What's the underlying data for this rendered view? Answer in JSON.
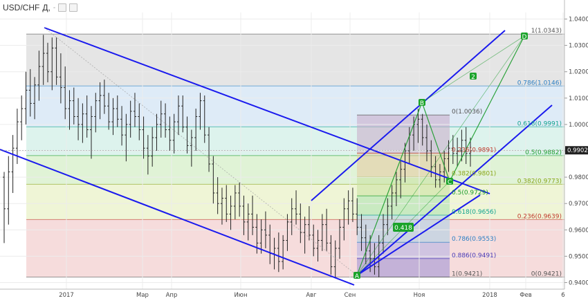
{
  "header": {
    "symbol": "USD/CHF",
    "timeframe": "Д,",
    "dropdown_glyph": "-"
  },
  "chart_data": {
    "type": "candlestick-ohlc",
    "x_ticks": [
      "2017",
      "Мар",
      "Апр",
      "Июн",
      "Авг",
      "Сен",
      "Ноя",
      "2018",
      "Фев",
      "6"
    ],
    "y_ticks": [
      "1.0400",
      "1.0300",
      "1.0200",
      "1.0100",
      "1.0000",
      "0.9900",
      "0.9800",
      "0.9700",
      "0.9600",
      "0.9500",
      "0.9400"
    ],
    "ylim": [
      0.9375,
      1.0425
    ],
    "current_price_label": "0.9902",
    "fib_right": [
      {
        "label": "1(1.0343)",
        "value": 1.0343,
        "color": "#555555"
      },
      {
        "label": "0.786(1.0146)",
        "value": 1.0146,
        "color": "#2b7fc4"
      },
      {
        "label": "0.618(0.9991)",
        "value": 0.9991,
        "color": "#11a38f"
      },
      {
        "label": "0.5(0.9882)",
        "value": 0.9882,
        "color": "#1a9b2a"
      },
      {
        "label": "0.382(0.9773)",
        "value": 0.9773,
        "color": "#8aa41b"
      },
      {
        "label": "0.236(0.9639)",
        "value": 0.9639,
        "color": "#c0392b"
      },
      {
        "label": "0(0.9421)",
        "value": 0.9421,
        "color": "#555555"
      }
    ],
    "fib_inner": [
      {
        "label": "0(1.0036)",
        "value": 1.0036,
        "color": "#555555"
      },
      {
        "label": "0.236(0.9891)",
        "value": 0.9891,
        "color": "#c0392b"
      },
      {
        "label": "0.382(0.9801)",
        "value": 0.9801,
        "color": "#8aa41b"
      },
      {
        "label": "0.5(0.9729)",
        "value": 0.9729,
        "color": "#1a9b2a"
      },
      {
        "label": "0.618(0.9656)",
        "value": 0.9656,
        "color": "#11a38f"
      },
      {
        "label": "0.786(0.9553)",
        "value": 0.9553,
        "color": "#2b7fc4"
      },
      {
        "label": "0.886(0.9491)",
        "value": 0.9491,
        "color": "#4a38b4"
      },
      {
        "label": "1(0.9421)",
        "value": 0.9421,
        "color": "#555555"
      }
    ],
    "pattern_points": [
      {
        "label": "A",
        "price": 0.9421
      },
      {
        "label": "B",
        "price": 1.0066
      },
      {
        "label": "C",
        "price": 0.9757
      },
      {
        "label": "D",
        "price": 1.0343
      }
    ],
    "marker_2": "2",
    "ratio_label": "0.418",
    "fill_colors": {
      "top_band": "#e0e0e0",
      "b786": "#d8e8f6",
      "b618": "#d7f1ea",
      "b500": "#daf1cf",
      "b382": "#ecf3cf",
      "b236": "#f4d6d6",
      "channel": "#1a1aee",
      "pattern": "#1a9b2a"
    },
    "candles": [
      [
        0.98,
        0.982,
        0.955,
        0.968
      ],
      [
        0.968,
        0.988,
        0.962,
        0.982
      ],
      [
        0.982,
        0.996,
        0.974,
        0.991
      ],
      [
        0.991,
        1.006,
        0.985,
        1.001
      ],
      [
        1.001,
        1.011,
        0.994,
        1.006
      ],
      [
        1.006,
        1.02,
        1.0,
        1.013
      ],
      [
        1.013,
        1.021,
        1.003,
        1.008
      ],
      [
        1.008,
        1.018,
        1.002,
        1.015
      ],
      [
        1.015,
        1.028,
        1.009,
        1.022
      ],
      [
        1.022,
        1.034,
        1.015,
        1.027
      ],
      [
        1.027,
        1.031,
        1.016,
        1.02
      ],
      [
        1.02,
        1.033,
        1.013,
        1.029
      ],
      [
        1.029,
        1.033,
        1.015,
        1.018
      ],
      [
        1.018,
        1.027,
        1.008,
        1.014
      ],
      [
        1.014,
        1.022,
        1.002,
        1.006
      ],
      [
        1.006,
        1.013,
        0.998,
        1.009
      ],
      [
        1.009,
        1.014,
        1.0,
        1.003
      ],
      [
        1.003,
        1.01,
        0.994,
        1.0
      ],
      [
        1.0,
        1.008,
        0.993,
        1.004
      ],
      [
        1.004,
        1.011,
        0.995,
        0.998
      ],
      [
        0.998,
        1.007,
        0.987,
        1.003
      ],
      [
        1.003,
        1.012,
        0.997,
        1.009
      ],
      [
        1.009,
        1.016,
        1.002,
        1.011
      ],
      [
        1.011,
        1.017,
        1.004,
        1.007
      ],
      [
        1.007,
        1.012,
        0.998,
        1.001
      ],
      [
        1.001,
        1.01,
        0.996,
        1.006
      ],
      [
        1.006,
        1.011,
        0.999,
        1.002
      ],
      [
        1.002,
        1.007,
        0.992,
        0.996
      ],
      [
        0.996,
        1.004,
        0.986,
        1.0
      ],
      [
        1.0,
        1.009,
        0.995,
        1.005
      ],
      [
        1.005,
        1.012,
        0.999,
        1.003
      ],
      [
        1.003,
        1.008,
        0.994,
        0.998
      ],
      [
        0.998,
        1.003,
        0.987,
        0.991
      ],
      [
        0.991,
        0.996,
        0.981,
        0.988
      ],
      [
        0.988,
        0.999,
        0.984,
        0.995
      ],
      [
        0.995,
        1.004,
        0.99,
        1.0
      ],
      [
        1.0,
        1.009,
        0.995,
        1.004
      ],
      [
        1.004,
        1.008,
        0.995,
        0.998
      ],
      [
        0.998,
        1.003,
        0.99,
        0.994
      ],
      [
        0.994,
        1.004,
        0.989,
        1.001
      ],
      [
        1.001,
        1.011,
        0.996,
        1.007
      ],
      [
        1.007,
        1.011,
        0.997,
        0.999
      ],
      [
        0.999,
        1.003,
        0.989,
        0.992
      ],
      [
        0.992,
        0.998,
        0.984,
        0.995
      ],
      [
        0.995,
        1.006,
        0.99,
        1.003
      ],
      [
        1.003,
        1.012,
        0.998,
        1.009
      ],
      [
        1.009,
        1.011,
        0.993,
        0.996
      ],
      [
        0.996,
        0.999,
        0.982,
        0.985
      ],
      [
        0.985,
        0.988,
        0.97,
        0.974
      ],
      [
        0.974,
        0.98,
        0.966,
        0.97
      ],
      [
        0.97,
        0.976,
        0.962,
        0.972
      ],
      [
        0.972,
        0.977,
        0.963,
        0.966
      ],
      [
        0.966,
        0.973,
        0.96,
        0.969
      ],
      [
        0.969,
        0.977,
        0.964,
        0.974
      ],
      [
        0.974,
        0.978,
        0.965,
        0.969
      ],
      [
        0.969,
        0.973,
        0.958,
        0.963
      ],
      [
        0.963,
        0.97,
        0.956,
        0.966
      ],
      [
        0.966,
        0.973,
        0.958,
        0.961
      ],
      [
        0.961,
        0.966,
        0.951,
        0.955
      ],
      [
        0.955,
        0.964,
        0.951,
        0.96
      ],
      [
        0.96,
        0.967,
        0.953,
        0.958
      ],
      [
        0.958,
        0.962,
        0.947,
        0.951
      ],
      [
        0.951,
        0.957,
        0.945,
        0.953
      ],
      [
        0.953,
        0.959,
        0.944,
        0.948
      ],
      [
        0.948,
        0.958,
        0.945,
        0.956
      ],
      [
        0.956,
        0.966,
        0.952,
        0.963
      ],
      [
        0.963,
        0.972,
        0.958,
        0.968
      ],
      [
        0.968,
        0.975,
        0.962,
        0.966
      ],
      [
        0.966,
        0.97,
        0.955,
        0.959
      ],
      [
        0.959,
        0.965,
        0.951,
        0.962
      ],
      [
        0.962,
        0.969,
        0.956,
        0.958
      ],
      [
        0.958,
        0.962,
        0.95,
        0.953
      ],
      [
        0.953,
        0.96,
        0.948,
        0.956
      ],
      [
        0.956,
        0.966,
        0.952,
        0.962
      ],
      [
        0.962,
        0.968,
        0.952,
        0.955
      ],
      [
        0.955,
        0.958,
        0.943,
        0.946
      ],
      [
        0.946,
        0.956,
        0.942,
        0.953
      ],
      [
        0.953,
        0.964,
        0.949,
        0.961
      ],
      [
        0.961,
        0.972,
        0.956,
        0.968
      ],
      [
        0.968,
        0.975,
        0.962,
        0.971
      ],
      [
        0.971,
        0.976,
        0.963,
        0.966
      ],
      [
        0.966,
        0.972,
        0.958,
        0.961
      ],
      [
        0.961,
        0.966,
        0.952,
        0.957
      ],
      [
        0.957,
        0.962,
        0.947,
        0.952
      ],
      [
        0.952,
        0.958,
        0.944,
        0.949
      ],
      [
        0.949,
        0.955,
        0.943,
        0.946
      ],
      [
        0.946,
        0.958,
        0.942,
        0.955
      ],
      [
        0.955,
        0.966,
        0.951,
        0.962
      ],
      [
        0.962,
        0.972,
        0.958,
        0.969
      ],
      [
        0.969,
        0.977,
        0.964,
        0.974
      ],
      [
        0.974,
        0.982,
        0.969,
        0.979
      ],
      [
        0.979,
        0.986,
        0.972,
        0.983
      ],
      [
        0.983,
        0.993,
        0.978,
        0.99
      ],
      [
        0.99,
        0.999,
        0.985,
        0.996
      ],
      [
        0.996,
        1.003,
        0.99,
        1.0
      ],
      [
        1.0,
        1.006,
        0.993,
        1.002
      ],
      [
        1.002,
        1.004,
        0.992,
        0.995
      ],
      [
        0.995,
        1.0,
        0.986,
        0.99
      ],
      [
        0.99,
        0.994,
        0.98,
        0.984
      ],
      [
        0.984,
        0.988,
        0.976,
        0.979
      ],
      [
        0.979,
        0.985,
        0.976,
        0.982
      ],
      [
        0.982,
        0.99,
        0.978,
        0.987
      ],
      [
        0.987,
        0.994,
        0.982,
        0.991
      ],
      [
        0.991,
        0.996,
        0.985,
        0.989
      ],
      [
        0.989,
        0.995,
        0.984,
        0.99
      ],
      [
        0.99,
        0.998,
        0.986,
        0.994
      ],
      [
        0.994,
        0.999,
        0.985,
        0.989
      ],
      [
        0.989,
        0.995,
        0.984,
        0.99
      ]
    ]
  }
}
